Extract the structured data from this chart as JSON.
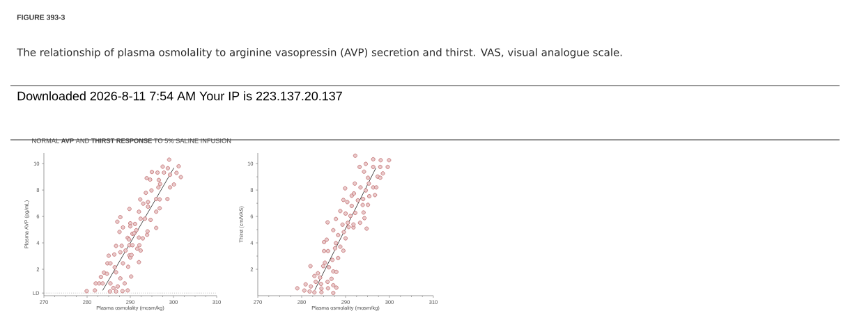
{
  "chart_data": [
    {
      "type": "scatter",
      "title": "NORMAL **AVP** AND **THIRST RESPONSE** TO 5% SALINE INFUSION",
      "annotations": [
        "FIGURE 393-3",
        "The relationship of plasma osmolality to arginine vasopressin (AVP) secretion and thirst. VAS, visual analogue scale.",
        "Downloaded 2026-8-11 7:54 AM  Your IP is 223.137.20.137"
      ],
      "xlabel": "Plasma osmolality (mosm/kg)",
      "ylabel": "Plasma AVP (pg/mL)",
      "xlim": [
        270,
        310
      ],
      "xticks": [
        270,
        280,
        290,
        300,
        310
      ],
      "ylim": [
        0,
        10.8
      ],
      "yticks": [
        {
          "value": 0.2,
          "label": "LD"
        },
        2,
        4,
        6,
        8,
        10
      ],
      "marker": "circle",
      "ref_lines": [
        {
          "axis": "y",
          "value": 0.2,
          "color": "#999999",
          "line_style": "dotted"
        }
      ],
      "series": [
        {
          "color": "#c0696b",
          "x": [
            279.9,
            281.8,
            282.0,
            282.8,
            283.6,
            283.2,
            283.9,
            284.6,
            285.3,
            285.4,
            286.1,
            286.7,
            287.1,
            287.7,
            288.7,
            288.2,
            289.4,
            290.2,
            284.7,
            285.4,
            285.0,
            286.3,
            286.4,
            286.7,
            286.7,
            287.7,
            288.0,
            288.3,
            288.9,
            289.5,
            289.8,
            290.0,
            290.3,
            289.8,
            290.5,
            289.4,
            289.7,
            290.5,
            290.9,
            291.6,
            292.1,
            292.0,
            292.4,
            292.0,
            287.5,
            288.3,
            287.0,
            287.7,
            290.0,
            290.0,
            291.1,
            291.4,
            292.4,
            292.0,
            289.8,
            292.9,
            293.4,
            293.9,
            294.0,
            294.7,
            296.0,
            292.3,
            293.0,
            293.6,
            294.1,
            294.1,
            294.9,
            296.0,
            296.0,
            296.8,
            296.8,
            296.5,
            296.9,
            296.6,
            293.8,
            294.6,
            295.0,
            296.3,
            297.5,
            297.8,
            298.7,
            299.0,
            298.6,
            299.2,
            300.1,
            300.7,
            301.2,
            301.7,
            299.2
          ],
          "values": [
            0.35,
            0.4,
            0.93,
            0.93,
            0.93,
            1.42,
            1.75,
            1.66,
            0.32,
            0.93,
            0.58,
            0.32,
            0.7,
            1.31,
            0.93,
            0.35,
            0.4,
            1.45,
            2.45,
            2.45,
            3.03,
            3.12,
            2.15,
            1.77,
            3.77,
            3.29,
            3.78,
            2.45,
            3.42,
            2.19,
            3.05,
            2.89,
            3.08,
            3.82,
            3.82,
            4.38,
            4.26,
            4.69,
            4.73,
            3.56,
            3.82,
            4.4,
            3.42,
            2.54,
            4.83,
            5.17,
            5.6,
            5.95,
            5.48,
            5.25,
            5.43,
            4.96,
            5.83,
            6.36,
            6.57,
            4.34,
            5.83,
            4.61,
            4.87,
            5.74,
            5.13,
            7.29,
            6.97,
            7.79,
            7.09,
            6.74,
            7.97,
            7.32,
            6.36,
            6.62,
            7.29,
            8.2,
            8.46,
            8.76,
            8.9,
            8.79,
            9.37,
            9.32,
            9.77,
            9.32,
            9.65,
            10.3,
            7.32,
            8.2,
            8.42,
            9.3,
            9.8,
            8.98,
            9.16
          ]
        },
        {
          "type": "line",
          "color": "#333333",
          "marker": "none",
          "line_style": "solid",
          "x": [
            283.6,
            300.1
          ],
          "values": [
            0.4,
            9.68
          ]
        }
      ]
    },
    {
      "type": "scatter",
      "xlabel": "Plasma osmolality (mosm/kg)",
      "ylabel": "Thirst (cm/VAS)",
      "xlim": [
        270,
        310
      ],
      "xticks": [
        270,
        280,
        290,
        300,
        310
      ],
      "ylim": [
        0,
        10.8
      ],
      "yticks": [
        2,
        4,
        6,
        8,
        10
      ],
      "marker": "circle",
      "series": [
        {
          "color": "#c0696b",
          "x": [
            279.0,
            280.6,
            280.9,
            281.8,
            282.1,
            282.0,
            282.9,
            282.9,
            283.7,
            283.2,
            284.4,
            284.5,
            284.5,
            284.2,
            284.9,
            285.1,
            285.1,
            285.3,
            285.7,
            286.0,
            285.9,
            286.0,
            286.2,
            285.9,
            287.0,
            286.8,
            287.2,
            287.2,
            287.2,
            287.9,
            287.9,
            288.3,
            287.2,
            287.8,
            288.3,
            287.8,
            287.6,
            288.8,
            289.5,
            290.0,
            289.6,
            288.8,
            289.3,
            290.0,
            289.5,
            290.4,
            289.9,
            290.5,
            290.7,
            291.1,
            291.4,
            291.4,
            291.8,
            291.8,
            291.9,
            292.2,
            292.1,
            292.2,
            292.8,
            293.3,
            293.4,
            293.2,
            293.9,
            294.0,
            294.1,
            294.3,
            294.8,
            294.2,
            294.6,
            294.6,
            295.1,
            295.1,
            295.3,
            295.4,
            296.3,
            296.3,
            296.3,
            296.7,
            297.0,
            297.3,
            297.9,
            298.0,
            297.9,
            298.5,
            299.6,
            299.9
          ],
          "values": [
            0.56,
            0.39,
            0.86,
            0.32,
            0.7,
            2.24,
            0.25,
            1.49,
            1.7,
            1.05,
            0.89,
            0.26,
            0.54,
            1.37,
            2.24,
            3.38,
            4.06,
            2.5,
            4.24,
            3.38,
            1.05,
            0.56,
            2.15,
            5.55,
            2.71,
            1.28,
            1.84,
            0.21,
            0.79,
            1.8,
            0.61,
            2.85,
            4.96,
            3.98,
            4.59,
            5.81,
            3.59,
            3.71,
            3.41,
            4.34,
            4.82,
            6.41,
            5.38,
            6.22,
            7.25,
            7.09,
            8.13,
            5.52,
            5.2,
            6.04,
            6.8,
            7.57,
            5.17,
            5.39,
            7.74,
            6.27,
            8.49,
            10.6,
            7.22,
            5.52,
            8.2,
            9.75,
            6.87,
            7.32,
            6.3,
            5.87,
            5.08,
            9.39,
            9.98,
            7.97,
            6.88,
            8.93,
            8.49,
            7.53,
            10.33,
            9.75,
            8.2,
            7.62,
            8.2,
            9.02,
            8.93,
            10.26,
            9.75,
            9.26,
            9.75,
            10.26
          ]
        },
        {
          "type": "line",
          "color": "#333333",
          "marker": "none",
          "line_style": "solid",
          "x": [
            283.0,
            296.9
          ],
          "values": [
            0.44,
            9.67
          ]
        }
      ]
    }
  ]
}
